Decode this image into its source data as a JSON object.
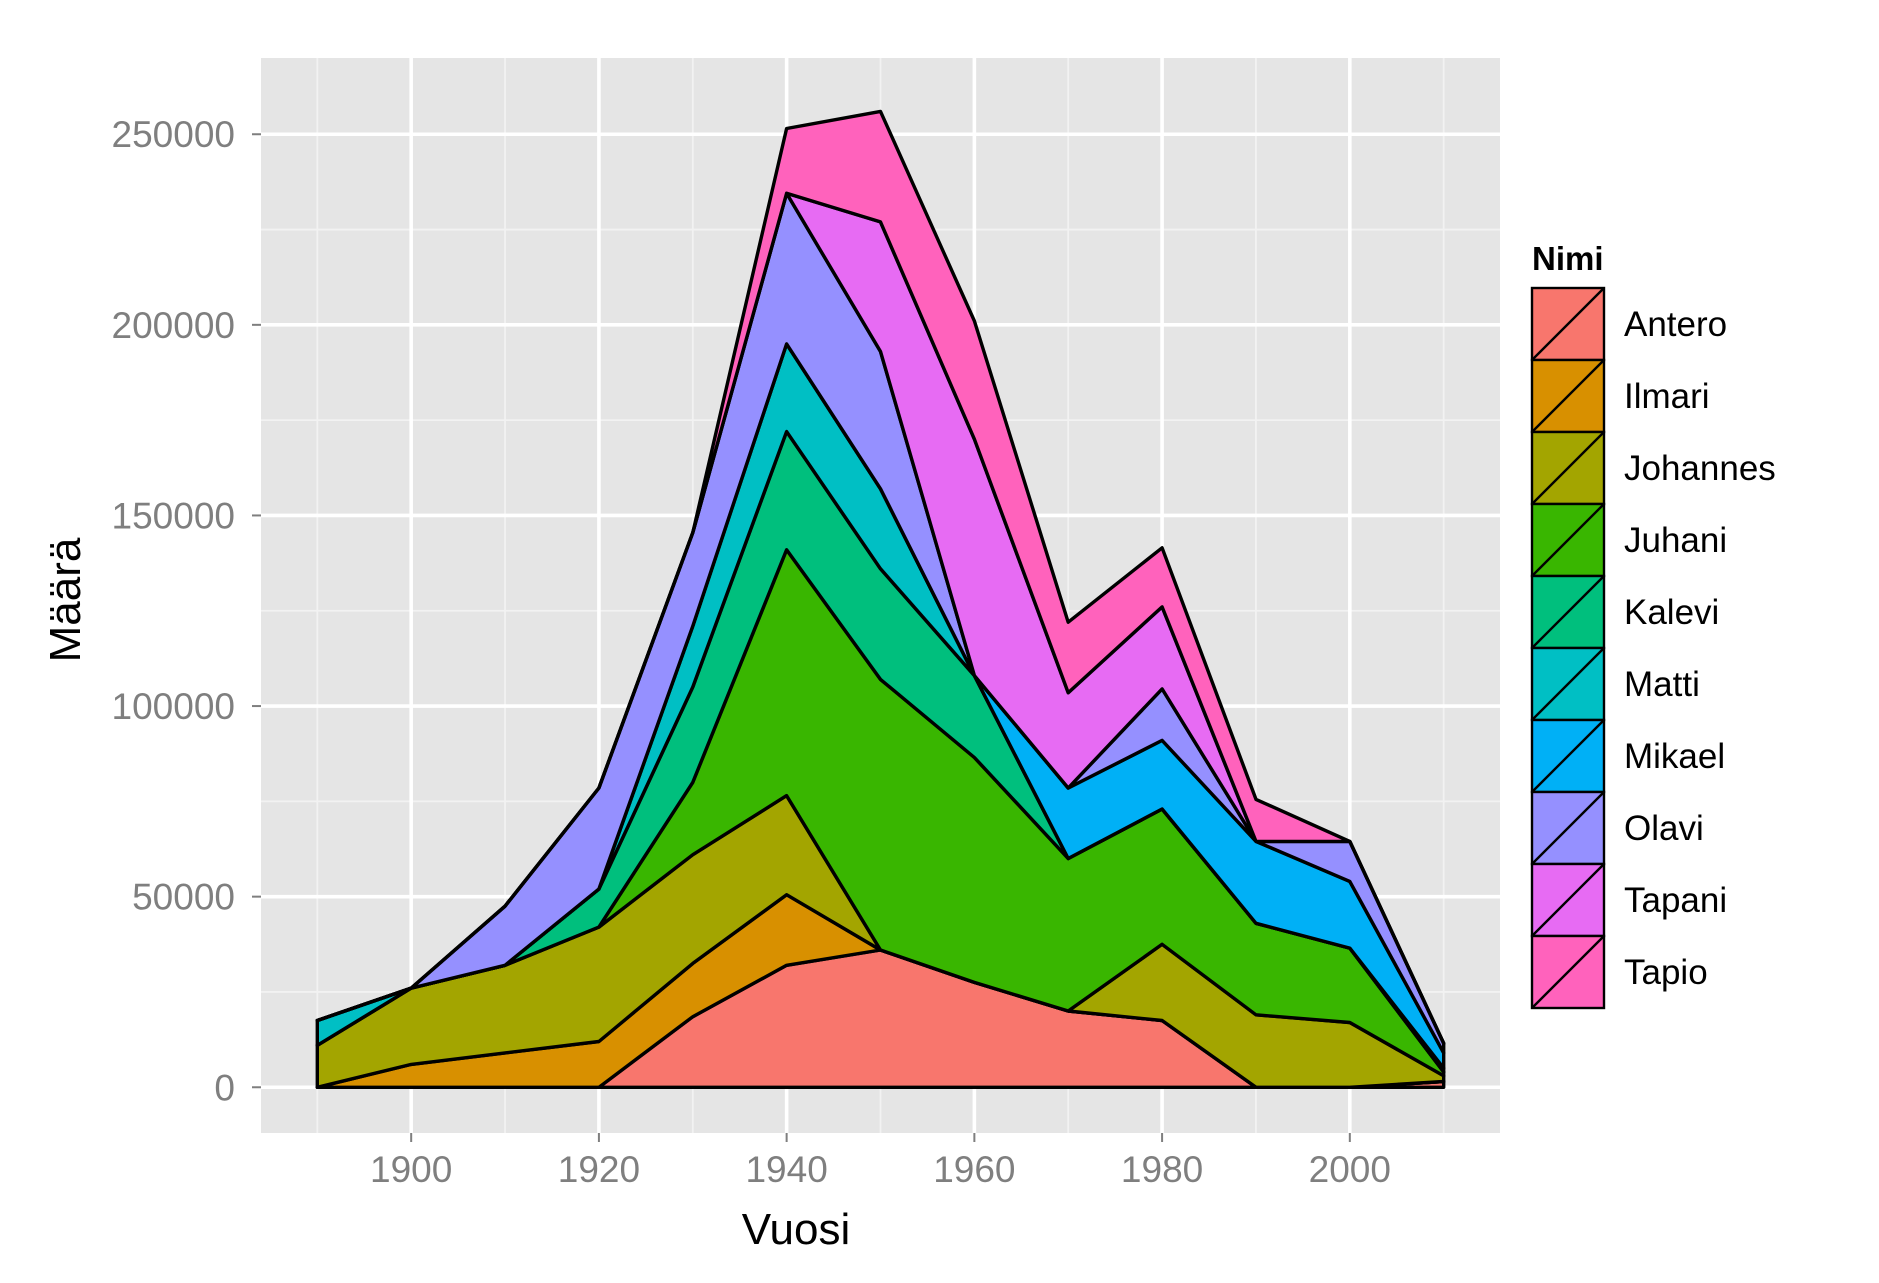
{
  "chart_data": {
    "type": "area",
    "stacked": true,
    "xlabel": "Vuosi",
    "ylabel": "Määrä",
    "legend_title": "Nimi",
    "legend_position": "right",
    "grid": true,
    "xlim": [
      1884,
      2016
    ],
    "ylim": [
      -12000,
      270000
    ],
    "x_ticks": [
      1900,
      1920,
      1940,
      1960,
      1980,
      2000
    ],
    "y_ticks": [
      0,
      50000,
      100000,
      150000,
      200000,
      250000
    ],
    "x_tick_labels": [
      "1900",
      "1920",
      "1940",
      "1960",
      "1980",
      "2000"
    ],
    "y_tick_labels": [
      "0",
      "50000",
      "100000",
      "150000",
      "200000",
      "250000"
    ],
    "x": [
      1890,
      1900,
      1910,
      1920,
      1930,
      1940,
      1950,
      1960,
      1970,
      1980,
      1990,
      2000,
      2010
    ],
    "series": [
      {
        "name": "Antero",
        "color": "#F8766D",
        "values": [
          0,
          0,
          0,
          0,
          18500,
          32000,
          36000,
          27500,
          20000,
          17500,
          0,
          0,
          1500
        ]
      },
      {
        "name": "Ilmari",
        "color": "#D89000",
        "values": [
          0,
          6000,
          9000,
          12000,
          14000,
          18500,
          0,
          0,
          0,
          0,
          0,
          0,
          0
        ]
      },
      {
        "name": "Johannes",
        "color": "#A3A500",
        "values": [
          11000,
          20000,
          23000,
          30000,
          28500,
          26000,
          0,
          0,
          0,
          20000,
          19000,
          17000,
          1500
        ]
      },
      {
        "name": "Juhani",
        "color": "#39B600",
        "values": [
          0,
          0,
          0,
          0,
          19000,
          64500,
          71000,
          59000,
          40000,
          35500,
          24000,
          19500,
          1000
        ]
      },
      {
        "name": "Kalevi",
        "color": "#00BF7D",
        "values": [
          0,
          0,
          0,
          10000,
          25000,
          31000,
          29000,
          21500,
          0,
          0,
          0,
          0,
          0
        ]
      },
      {
        "name": "Matti",
        "color": "#00BFC4",
        "values": [
          6500,
          0,
          0,
          0,
          16000,
          23000,
          21000,
          0,
          0,
          0,
          0,
          0,
          1000
        ]
      },
      {
        "name": "Mikael",
        "color": "#00B0F6",
        "values": [
          0,
          0,
          0,
          0,
          0,
          0,
          0,
          0,
          18500,
          18000,
          21500,
          17500,
          4000
        ]
      },
      {
        "name": "Olavi",
        "color": "#9590FF",
        "values": [
          0,
          0,
          15500,
          26500,
          24500,
          39500,
          36000,
          0,
          0,
          13500,
          0,
          10500,
          2500
        ]
      },
      {
        "name": "Tapani",
        "color": "#E76BF3",
        "values": [
          0,
          0,
          0,
          0,
          0,
          0,
          34000,
          62000,
          25000,
          21500,
          0,
          0,
          0
        ]
      },
      {
        "name": "Tapio",
        "color": "#FF62BC",
        "values": [
          0,
          0,
          0,
          0,
          0,
          17000,
          29000,
          31000,
          18500,
          15500,
          11000,
          0,
          0
        ]
      }
    ]
  }
}
